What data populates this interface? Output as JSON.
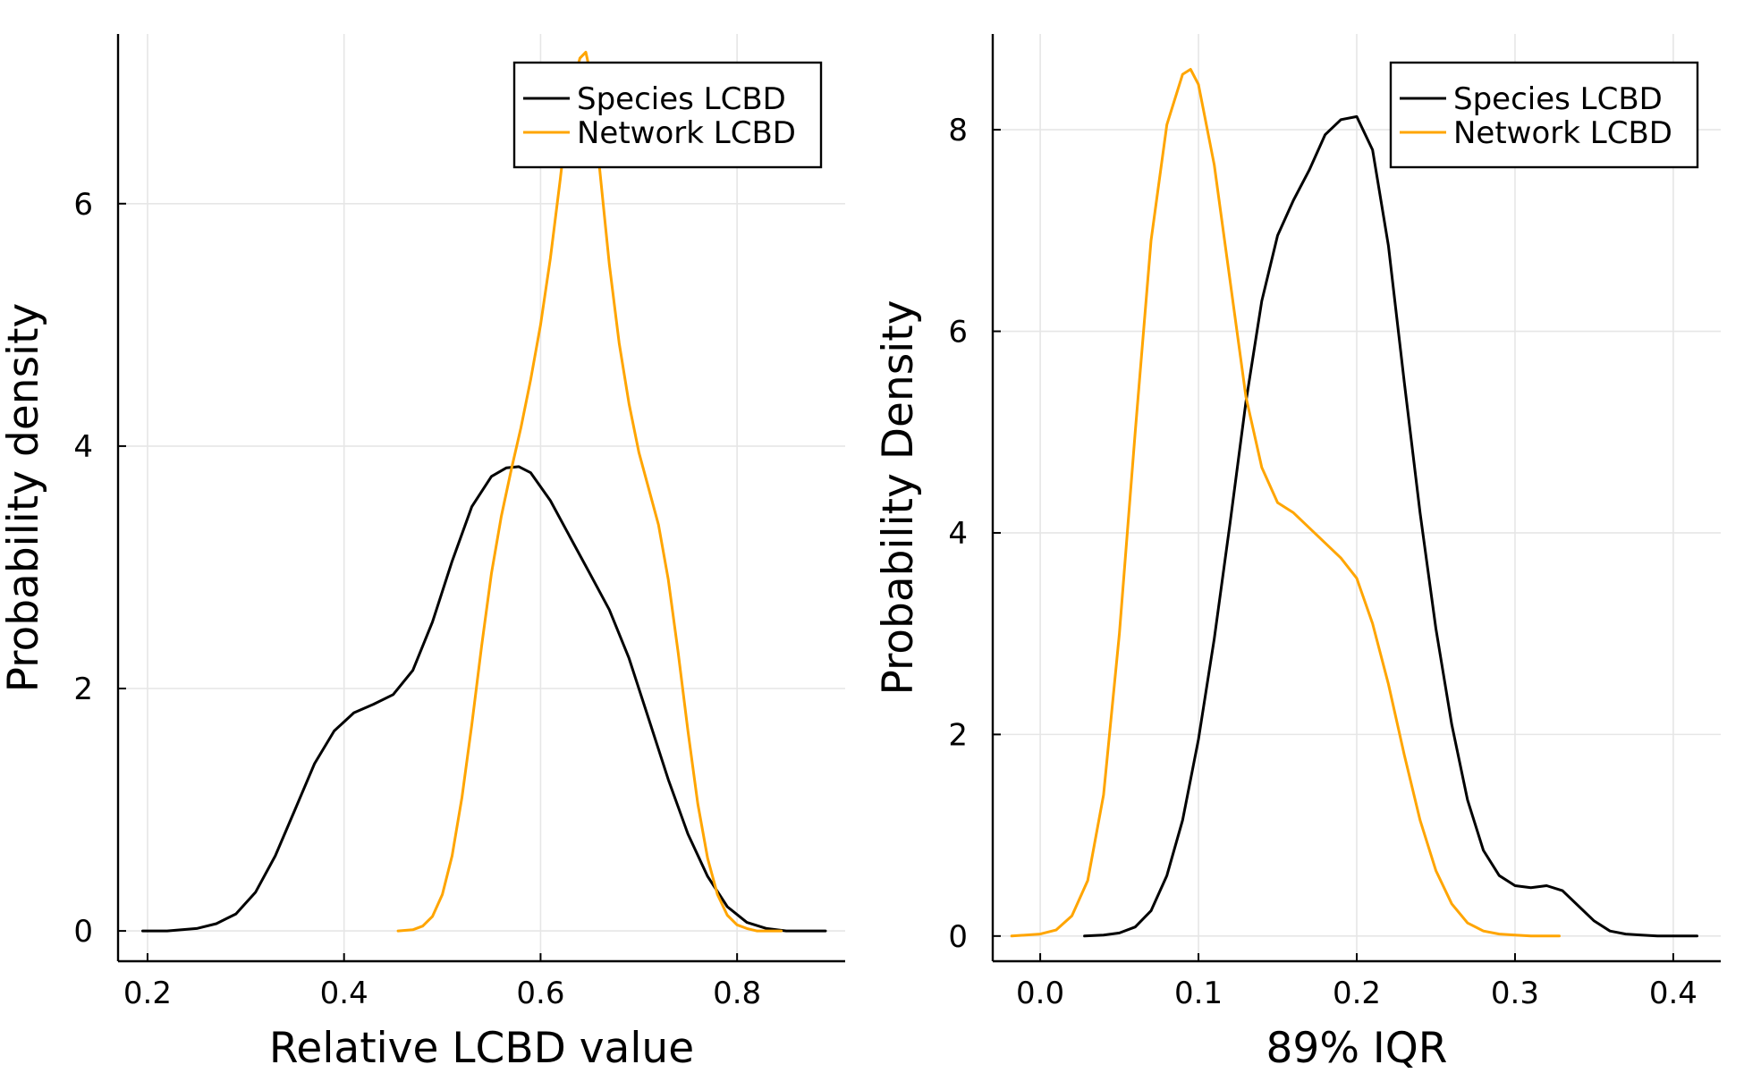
{
  "colors": {
    "species": "#000000",
    "network": "#FFA500",
    "grid": "#e6e6e6"
  },
  "chart_data": [
    {
      "type": "line",
      "xlabel": "Relative LCBD value",
      "ylabel": "Probability density",
      "xlim": [
        0.17,
        0.91
      ],
      "ylim": [
        -0.25,
        7.4
      ],
      "xticks": [
        0.2,
        0.4,
        0.6,
        0.8
      ],
      "xtick_labels": [
        "0.2",
        "0.4",
        "0.6",
        "0.8"
      ],
      "yticks": [
        0,
        2,
        4,
        6
      ],
      "ytick_labels": [
        "0",
        "2",
        "4",
        "6"
      ],
      "grid": true,
      "legend": "top-right",
      "series": [
        {
          "name": "Species LCBD",
          "color": "#000000",
          "x": [
            0.195,
            0.22,
            0.25,
            0.27,
            0.29,
            0.31,
            0.33,
            0.35,
            0.37,
            0.39,
            0.41,
            0.43,
            0.45,
            0.47,
            0.49,
            0.51,
            0.53,
            0.55,
            0.565,
            0.578,
            0.59,
            0.61,
            0.63,
            0.65,
            0.67,
            0.69,
            0.71,
            0.73,
            0.75,
            0.77,
            0.79,
            0.81,
            0.83,
            0.85,
            0.87,
            0.89
          ],
          "y": [
            0.0,
            0.0,
            0.02,
            0.06,
            0.14,
            0.32,
            0.62,
            1.0,
            1.38,
            1.65,
            1.8,
            1.87,
            1.95,
            2.15,
            2.55,
            3.05,
            3.5,
            3.75,
            3.82,
            3.83,
            3.78,
            3.55,
            3.25,
            2.95,
            2.65,
            2.25,
            1.75,
            1.25,
            0.8,
            0.45,
            0.2,
            0.07,
            0.02,
            0.0,
            0.0,
            0.0
          ]
        },
        {
          "name": "Network LCBD",
          "color": "#FFA500",
          "x": [
            0.455,
            0.47,
            0.48,
            0.49,
            0.5,
            0.51,
            0.52,
            0.53,
            0.54,
            0.55,
            0.56,
            0.57,
            0.58,
            0.59,
            0.6,
            0.61,
            0.62,
            0.63,
            0.64,
            0.646,
            0.65,
            0.66,
            0.67,
            0.68,
            0.69,
            0.7,
            0.71,
            0.72,
            0.73,
            0.74,
            0.75,
            0.76,
            0.77,
            0.78,
            0.79,
            0.8,
            0.81,
            0.82,
            0.83,
            0.845
          ],
          "y": [
            0.0,
            0.01,
            0.04,
            0.12,
            0.3,
            0.62,
            1.1,
            1.7,
            2.35,
            2.95,
            3.42,
            3.8,
            4.15,
            4.55,
            5.0,
            5.55,
            6.2,
            6.9,
            7.2,
            7.25,
            7.1,
            6.3,
            5.5,
            4.85,
            4.35,
            3.95,
            3.65,
            3.35,
            2.9,
            2.3,
            1.65,
            1.05,
            0.6,
            0.3,
            0.13,
            0.05,
            0.02,
            0.0,
            0.0,
            0.0
          ]
        }
      ]
    },
    {
      "type": "line",
      "xlabel": "89% IQR",
      "ylabel": "Probability Density",
      "xlim": [
        -0.03,
        0.43
      ],
      "ylim": [
        -0.25,
        8.95
      ],
      "xticks": [
        0.0,
        0.1,
        0.2,
        0.3,
        0.4
      ],
      "xtick_labels": [
        "0.0",
        "0.1",
        "0.2",
        "0.3",
        "0.4"
      ],
      "yticks": [
        0,
        2,
        4,
        6,
        8
      ],
      "ytick_labels": [
        "0",
        "2",
        "4",
        "6",
        "8"
      ],
      "grid": true,
      "legend": "top-right",
      "series": [
        {
          "name": "Species LCBD",
          "color": "#000000",
          "x": [
            0.028,
            0.04,
            0.05,
            0.06,
            0.07,
            0.08,
            0.09,
            0.1,
            0.11,
            0.12,
            0.13,
            0.14,
            0.15,
            0.16,
            0.17,
            0.18,
            0.19,
            0.2,
            0.21,
            0.22,
            0.23,
            0.24,
            0.25,
            0.26,
            0.27,
            0.28,
            0.29,
            0.3,
            0.31,
            0.32,
            0.33,
            0.34,
            0.35,
            0.36,
            0.37,
            0.38,
            0.39,
            0.4,
            0.415
          ],
          "y": [
            0.0,
            0.01,
            0.03,
            0.09,
            0.25,
            0.6,
            1.15,
            1.95,
            2.95,
            4.1,
            5.3,
            6.3,
            6.95,
            7.3,
            7.6,
            7.95,
            8.1,
            8.13,
            7.8,
            6.85,
            5.5,
            4.2,
            3.05,
            2.1,
            1.35,
            0.85,
            0.6,
            0.5,
            0.48,
            0.5,
            0.45,
            0.3,
            0.15,
            0.05,
            0.02,
            0.01,
            0.0,
            0.0,
            0.0
          ]
        },
        {
          "name": "Network LCBD",
          "color": "#FFA500",
          "x": [
            -0.018,
            0.0,
            0.01,
            0.02,
            0.03,
            0.04,
            0.05,
            0.06,
            0.07,
            0.08,
            0.09,
            0.095,
            0.1,
            0.11,
            0.12,
            0.13,
            0.14,
            0.15,
            0.16,
            0.17,
            0.18,
            0.19,
            0.2,
            0.21,
            0.22,
            0.23,
            0.24,
            0.25,
            0.26,
            0.27,
            0.28,
            0.29,
            0.3,
            0.31,
            0.32,
            0.328
          ],
          "y": [
            0.0,
            0.02,
            0.06,
            0.2,
            0.55,
            1.4,
            3.0,
            5.0,
            6.9,
            8.05,
            8.55,
            8.6,
            8.45,
            7.65,
            6.5,
            5.35,
            4.65,
            4.3,
            4.2,
            4.05,
            3.9,
            3.75,
            3.55,
            3.1,
            2.5,
            1.8,
            1.15,
            0.65,
            0.32,
            0.13,
            0.05,
            0.02,
            0.01,
            0.0,
            0.0,
            0.0
          ]
        }
      ]
    }
  ]
}
